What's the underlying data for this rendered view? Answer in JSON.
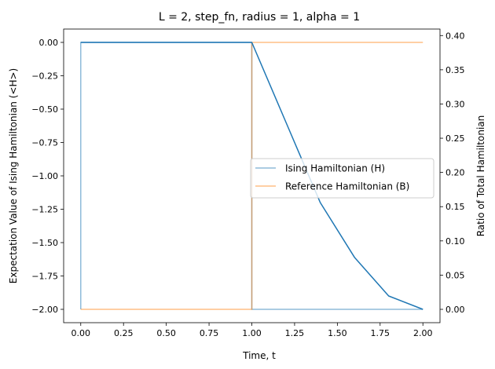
{
  "chart_data": {
    "type": "line",
    "title": "L = 2, step_fn, radius = 1, alpha = 1",
    "xlabel": "Time, t",
    "ylabel_left": "Expectation Value of Ising Hamiltonian (<H>)",
    "ylabel_right": "Ratio of Total Hamiltonian",
    "xlim": [
      -0.1,
      2.1
    ],
    "ylim_left": [
      -2.1,
      0.1
    ],
    "ylim_right": [
      -0.0195,
      0.4095
    ],
    "x_ticks": [
      "0.00",
      "0.25",
      "0.50",
      "0.75",
      "1.00",
      "1.25",
      "1.50",
      "1.75",
      "2.00"
    ],
    "y_ticks_left": [
      "0.00",
      "−0.25",
      "−0.50",
      "−0.75",
      "−1.00",
      "−1.25",
      "−1.50",
      "−1.75",
      "−2.00"
    ],
    "y_ticks_right": [
      "0.00",
      "0.05",
      "0.10",
      "0.15",
      "0.20",
      "0.25",
      "0.30",
      "0.35",
      "0.40"
    ],
    "grid": false,
    "legend_position": "center-right",
    "series": [
      {
        "axis": "left",
        "color": "#1f77b4",
        "x": [
          0.0,
          1.0,
          1.2,
          1.4,
          1.6,
          1.8,
          2.0
        ],
        "y": [
          0.0,
          0.0,
          -0.6,
          -1.2,
          -1.61,
          -1.9,
          -2.0
        ]
      },
      {
        "name": "Ising Hamiltonian (H)",
        "axis": "right",
        "color": "#1f77b4",
        "opacity": 0.5,
        "x": [
          0.0,
          0.0,
          1.0,
          1.0,
          2.0
        ],
        "y": [
          0.0,
          0.39,
          0.39,
          0.0,
          0.0
        ]
      },
      {
        "name": "Reference Hamiltonian (B)",
        "axis": "right",
        "color": "#ff7f0e",
        "opacity": 0.5,
        "x": [
          0.0,
          1.0,
          1.0,
          2.0
        ],
        "y": [
          0.0,
          0.0,
          0.39,
          0.39
        ]
      }
    ]
  }
}
